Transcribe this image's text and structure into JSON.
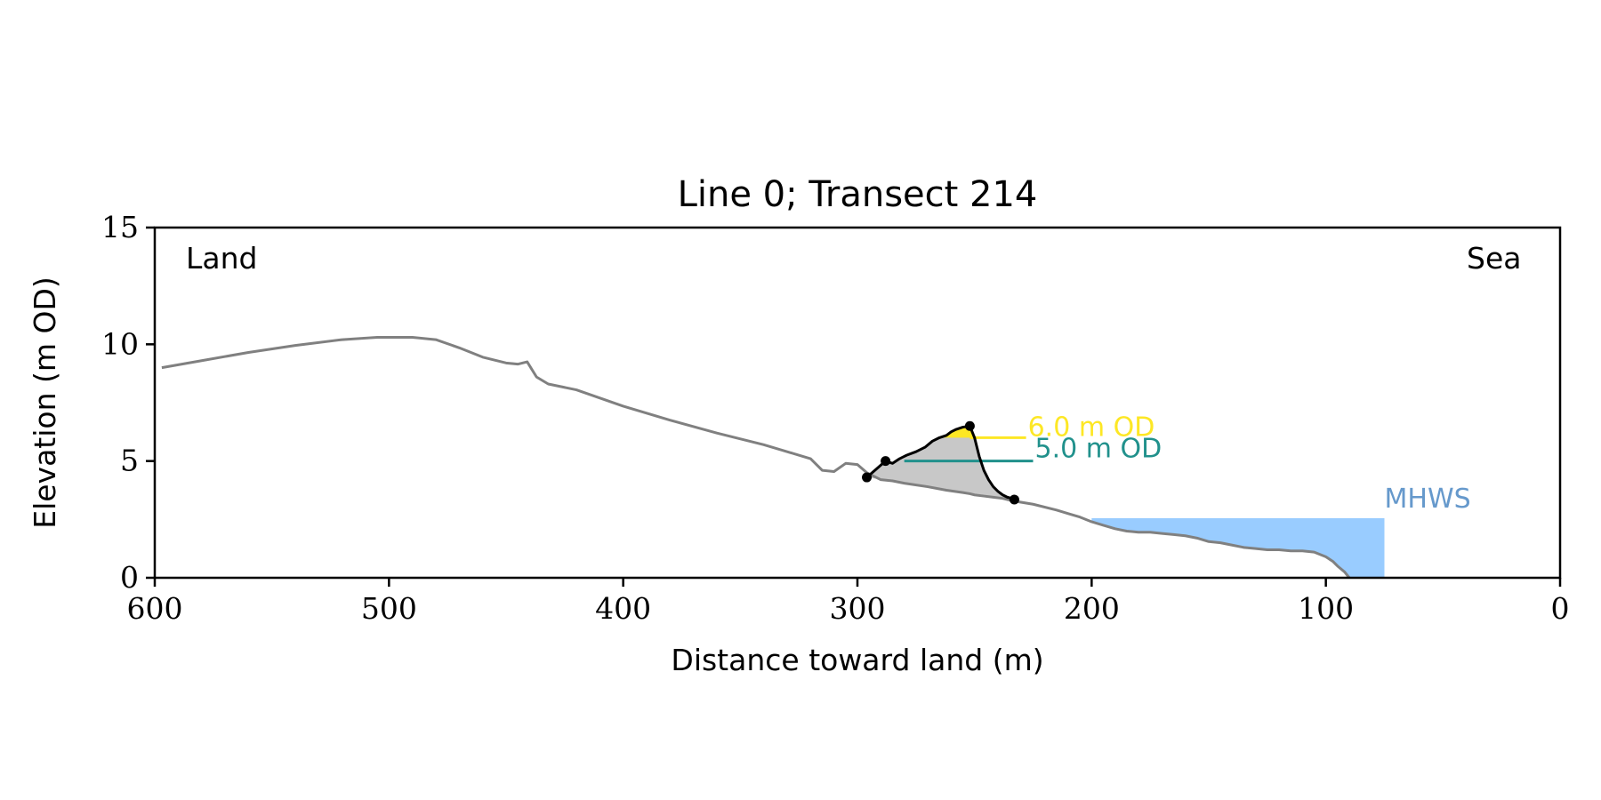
{
  "chart_data": {
    "type": "line",
    "title": "Line 0; Transect 214",
    "xlabel": "Distance toward land (m)",
    "ylabel": "Elevation (m OD)",
    "xlim": [
      600,
      0
    ],
    "ylim": [
      0,
      15
    ],
    "x_ticks": [
      600,
      500,
      400,
      300,
      200,
      100,
      0
    ],
    "y_ticks": [
      0,
      5,
      10,
      15
    ],
    "x_tick_labels": [
      "600",
      "500",
      "400",
      "300",
      "200",
      "100",
      "0"
    ],
    "y_tick_labels": [
      "0",
      "5",
      "10",
      "15"
    ],
    "grid": false,
    "corner_labels": {
      "left": "Land",
      "right": "Sea"
    },
    "colors": {
      "profile": "#808080",
      "dune": "#000000",
      "dune_base_fill": "#c8c8c8",
      "upper_level": "#fde725",
      "lower_level": "#21918c",
      "lower_fill": "#22a884",
      "mhws": "#99ccff",
      "mhws_text": "#6699cc"
    },
    "profile": {
      "x": [
        597,
        580,
        560,
        540,
        520,
        505,
        490,
        480,
        470,
        460,
        450,
        445,
        441,
        437,
        432,
        420,
        400,
        380,
        360,
        340,
        320,
        315,
        310,
        305,
        300,
        296,
        290,
        285,
        280,
        270,
        262,
        255,
        252,
        250,
        246,
        242,
        238,
        234,
        225,
        215,
        210,
        205,
        200,
        195,
        190,
        185,
        180,
        175,
        170,
        165,
        160,
        155,
        150,
        145,
        140,
        135,
        130,
        125,
        120,
        115,
        110,
        105,
        100,
        97,
        95,
        92,
        90
      ],
      "y": [
        9.0,
        9.3,
        9.65,
        9.95,
        10.2,
        10.3,
        10.3,
        10.2,
        9.85,
        9.45,
        9.2,
        9.15,
        9.25,
        8.6,
        8.3,
        8.05,
        7.35,
        6.75,
        6.2,
        5.7,
        5.1,
        4.6,
        4.55,
        4.9,
        4.85,
        4.5,
        4.2,
        4.15,
        4.05,
        3.9,
        3.75,
        3.65,
        3.6,
        3.55,
        3.5,
        3.45,
        3.4,
        3.3,
        3.15,
        2.9,
        2.75,
        2.6,
        2.4,
        2.25,
        2.1,
        2.0,
        1.95,
        1.95,
        1.9,
        1.85,
        1.8,
        1.7,
        1.55,
        1.5,
        1.4,
        1.3,
        1.25,
        1.2,
        1.2,
        1.15,
        1.15,
        1.1,
        0.9,
        0.7,
        0.5,
        0.25,
        0.0
      ]
    },
    "dune_crest": {
      "x": [
        296,
        292,
        288,
        285,
        282,
        279,
        275,
        271,
        268,
        265,
        262,
        260,
        258,
        255,
        252,
        250,
        248,
        246,
        244,
        242,
        240,
        238,
        236,
        234,
        233
      ],
      "y": [
        4.3,
        4.65,
        5.0,
        4.9,
        5.1,
        5.25,
        5.4,
        5.6,
        5.85,
        6.0,
        6.1,
        6.25,
        6.35,
        6.45,
        6.5,
        6.0,
        5.2,
        4.6,
        4.2,
        3.9,
        3.7,
        3.55,
        3.45,
        3.4,
        3.35
      ]
    },
    "dune_points": {
      "x": [
        296,
        288,
        252,
        233
      ],
      "y": [
        4.3,
        5.0,
        6.5,
        3.35
      ]
    },
    "dune_base": {
      "x": [
        296,
        233
      ],
      "y": [
        4.3,
        3.35
      ]
    },
    "levels": [
      {
        "label": "6.0 m OD",
        "value": 6.0,
        "x_end": 228
      },
      {
        "label": "5.0 m OD",
        "value": 5.0,
        "x_end": 225
      }
    ],
    "mhws": {
      "label": "MHWS",
      "value": 2.55,
      "x_from": 200,
      "x_to": 75
    }
  }
}
